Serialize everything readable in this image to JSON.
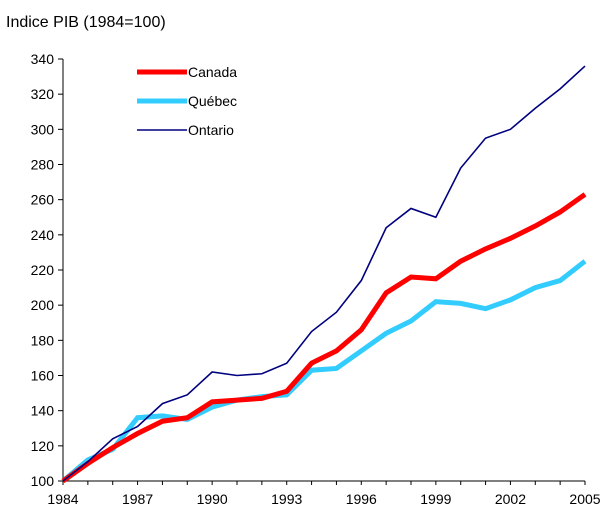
{
  "chart_data": {
    "type": "line",
    "title": "Indice PIB (1984=100)",
    "xlabel": "",
    "ylabel": "",
    "x": [
      1984,
      1985,
      1986,
      1987,
      1988,
      1989,
      1990,
      1991,
      1992,
      1993,
      1994,
      1995,
      1996,
      1997,
      1998,
      1999,
      2000,
      2001,
      2002,
      2003,
      2004,
      2005
    ],
    "xticks": [
      1984,
      1987,
      1990,
      1993,
      1996,
      1999,
      2002,
      2005
    ],
    "xlim": [
      1984,
      2005
    ],
    "ylim": [
      100,
      340
    ],
    "yticks": [
      100,
      120,
      140,
      160,
      180,
      200,
      220,
      240,
      260,
      280,
      300,
      320,
      340
    ],
    "grid": false,
    "legend_position": "top-left",
    "series": [
      {
        "name": "Canada",
        "color": "#ff0000",
        "width": "thick",
        "values": [
          100,
          110,
          119,
          127,
          134,
          136,
          145,
          146,
          147,
          151,
          167,
          174,
          186,
          207,
          216,
          215,
          225,
          232,
          238,
          245,
          253,
          263
        ]
      },
      {
        "name": "Québec",
        "color": "#33ccff",
        "width": "thick",
        "values": [
          100,
          112,
          118,
          136,
          137,
          135,
          142,
          146,
          148,
          149,
          163,
          164,
          174,
          184,
          191,
          202,
          201,
          198,
          203,
          210,
          214,
          225
        ]
      },
      {
        "name": "Ontario",
        "color": "#000080",
        "width": "thin",
        "values": [
          100,
          111,
          124,
          131,
          144,
          149,
          162,
          160,
          161,
          167,
          185,
          196,
          214,
          244,
          255,
          250,
          278,
          295,
          300,
          312,
          323,
          336
        ]
      }
    ]
  }
}
